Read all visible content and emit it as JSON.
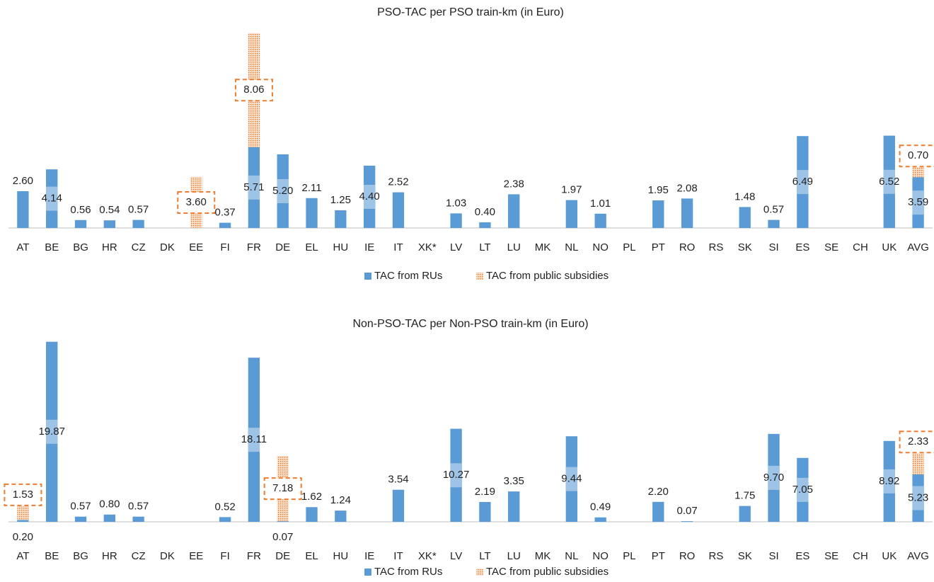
{
  "chart_data": [
    {
      "type": "bar",
      "stacked": true,
      "title": "PSO-TAC per PSO train-km (in Euro)",
      "categories": [
        "AT",
        "BE",
        "BG",
        "HR",
        "CZ",
        "DK",
        "EE",
        "FI",
        "FR",
        "DE",
        "EL",
        "HU",
        "IE",
        "IT",
        "XK*",
        "LV",
        "LT",
        "LU",
        "MK",
        "NL",
        "NO",
        "PL",
        "PT",
        "RO",
        "RS",
        "SK",
        "SI",
        "ES",
        "SE",
        "CH",
        "UK",
        "AVG"
      ],
      "ylim": [
        0,
        14
      ],
      "series": [
        {
          "name": "TAC from RUs",
          "color": "#5b9bd5",
          "values": [
            2.6,
            4.14,
            0.56,
            0.54,
            0.57,
            null,
            null,
            0.37,
            5.71,
            5.2,
            2.11,
            1.25,
            4.4,
            2.52,
            null,
            1.03,
            0.4,
            2.38,
            null,
            1.97,
            1.01,
            null,
            1.95,
            2.08,
            null,
            1.48,
            0.57,
            6.49,
            null,
            null,
            6.52,
            3.59
          ],
          "value_labels": [
            "2.60",
            "4.14",
            "0.56",
            "0.54",
            "0.57",
            null,
            null,
            "0.37",
            "5.71",
            "5.20",
            "2.11",
            "1.25",
            "4.40",
            "2.52",
            null,
            "1.03",
            "0.40",
            "2.38",
            null,
            "1.97",
            "1.01",
            null,
            "1.95",
            "2.08",
            null,
            "1.48",
            "0.57",
            "6.49",
            null,
            null,
            "6.52",
            "3.59"
          ]
        },
        {
          "name": "TAC from public subsidies",
          "color": "#ed7d31",
          "values": [
            null,
            null,
            null,
            null,
            null,
            null,
            3.6,
            null,
            8.06,
            null,
            null,
            null,
            null,
            null,
            null,
            null,
            null,
            null,
            null,
            null,
            null,
            null,
            null,
            null,
            null,
            null,
            null,
            null,
            null,
            null,
            null,
            0.7
          ],
          "value_labels": [
            null,
            null,
            null,
            null,
            null,
            null,
            "3.60",
            null,
            "8.06",
            null,
            null,
            null,
            null,
            null,
            null,
            null,
            null,
            null,
            null,
            null,
            null,
            null,
            null,
            null,
            null,
            null,
            null,
            null,
            null,
            null,
            null,
            "0.70"
          ]
        }
      ],
      "legend": "bottom"
    },
    {
      "type": "bar",
      "stacked": true,
      "title": "Non-PSO-TAC per Non-PSO train-km (in Euro)",
      "categories": [
        "AT",
        "BE",
        "BG",
        "HR",
        "CZ",
        "DK",
        "EE",
        "FI",
        "FR",
        "DE",
        "EL",
        "HU",
        "IE",
        "IT",
        "XK*",
        "LV",
        "LT",
        "LU",
        "MK",
        "NL",
        "NO",
        "PL",
        "PT",
        "RO",
        "RS",
        "SK",
        "SI",
        "ES",
        "SE",
        "CH",
        "UK",
        "AVG"
      ],
      "ylim": [
        0,
        20
      ],
      "series": [
        {
          "name": "TAC from RUs",
          "color": "#5b9bd5",
          "values": [
            0.2,
            19.87,
            0.57,
            0.8,
            0.57,
            null,
            null,
            0.52,
            18.11,
            0.07,
            1.62,
            1.24,
            null,
            3.54,
            null,
            10.27,
            2.19,
            3.35,
            null,
            9.44,
            0.49,
            null,
            2.2,
            0.07,
            null,
            1.75,
            9.7,
            7.05,
            null,
            null,
            8.92,
            5.23
          ],
          "value_labels": [
            "0.20",
            "19.87",
            "0.57",
            "0.80",
            "0.57",
            null,
            null,
            "0.52",
            "18.11",
            "0.07",
            "1.62",
            "1.24",
            null,
            "3.54",
            null,
            "10.27",
            "2.19",
            "3.35",
            null,
            "9.44",
            "0.49",
            null,
            "2.20",
            "0.07",
            null,
            "1.75",
            "9.70",
            "7.05",
            null,
            null,
            "8.92",
            "5.23"
          ]
        },
        {
          "name": "TAC from public subsidies",
          "color": "#ed7d31",
          "values": [
            1.53,
            null,
            null,
            null,
            null,
            null,
            null,
            null,
            null,
            7.18,
            null,
            null,
            null,
            null,
            null,
            null,
            null,
            null,
            null,
            null,
            null,
            null,
            null,
            null,
            null,
            null,
            null,
            null,
            null,
            null,
            null,
            2.33
          ],
          "value_labels": [
            "1.53",
            null,
            null,
            null,
            null,
            null,
            null,
            null,
            null,
            "7.18",
            null,
            null,
            null,
            null,
            null,
            null,
            null,
            null,
            null,
            null,
            null,
            null,
            null,
            null,
            null,
            null,
            null,
            null,
            null,
            null,
            null,
            "2.33"
          ]
        }
      ],
      "legend": "bottom"
    }
  ]
}
